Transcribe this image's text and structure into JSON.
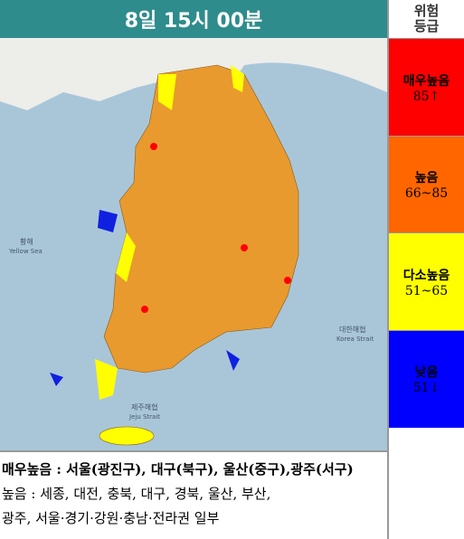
{
  "header": {
    "title": "8일 15시 00분"
  },
  "legend": {
    "title_lines": [
      "위험",
      "등급"
    ],
    "items": [
      {
        "label": "매우높음",
        "range": "85↑",
        "color": "#ff0000"
      },
      {
        "label": "높음",
        "range": "66~85",
        "color": "#ff6600"
      },
      {
        "label": "다소높음",
        "range": "51~65",
        "color": "#ffff00"
      },
      {
        "label": "낮음",
        "range": "51↓",
        "color": "#0000ff"
      }
    ]
  },
  "map": {
    "labels": [
      "황해",
      "Yellow Sea",
      "대한해협",
      "Korea Strait",
      "제주해협",
      "Jeju Strait"
    ]
  },
  "notes": {
    "lines": [
      "매우높음 : 서울(광진구), 대구(북구), 울산(중구),광주(서구)",
      "높음 : 세종, 대전, 충북, 대구, 경북, 울산, 부산,",
      "광주, 서울·경기·강원·충남·전라권 일부"
    ]
  }
}
